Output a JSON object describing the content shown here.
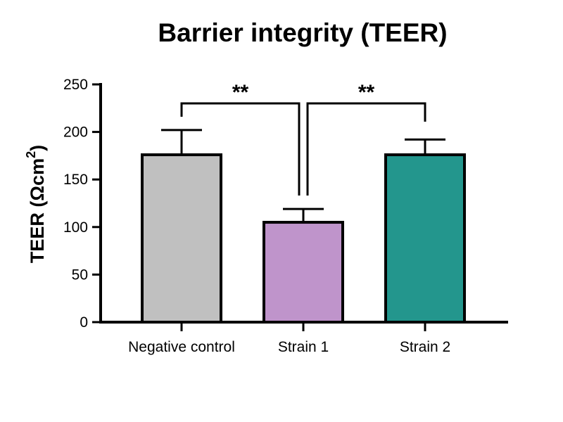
{
  "chart_data": {
    "type": "bar",
    "title": "Barrier integrity (TEER)",
    "ylabel": "TEER (Ωcm2)",
    "ylabel_parts": {
      "main": "TEER (Ωcm",
      "superscript": "2",
      "close": ")"
    },
    "xlabel": "",
    "ylim": [
      0,
      250
    ],
    "yticks": [
      0,
      50,
      100,
      150,
      200,
      250
    ],
    "categories": [
      "Negative control",
      "Strain 1",
      "Strain 2"
    ],
    "values": [
      176,
      105,
      176
    ],
    "errors": [
      26,
      14,
      16
    ],
    "colors": [
      "#c0c0c0",
      "#bf94cb",
      "#23968d"
    ],
    "grid": false,
    "legend": "none",
    "significance": [
      {
        "from": 0,
        "to": 1,
        "label": "**"
      },
      {
        "from": 1,
        "to": 2,
        "label": "**"
      }
    ]
  }
}
